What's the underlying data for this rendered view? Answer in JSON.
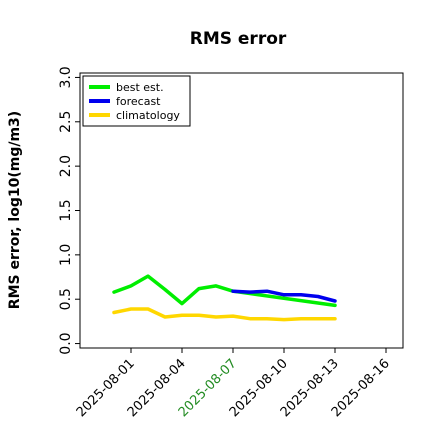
{
  "chart_data": {
    "type": "line",
    "title": "RMS error",
    "ylabel": "RMS error, log10(mg/m3)",
    "xlabel": "",
    "ylim": [
      -0.05,
      3.05
    ],
    "xlim": [
      "2025-07-29",
      "2025-08-17"
    ],
    "yticks": [
      0.0,
      0.5,
      1.0,
      1.5,
      2.0,
      2.5,
      3.0
    ],
    "ytick_labels": [
      "0.0",
      "0.5",
      "1.0",
      "1.5",
      "2.0",
      "2.5",
      "3.0"
    ],
    "xticks": [
      "2025-08-01",
      "2025-08-04",
      "2025-08-07",
      "2025-08-10",
      "2025-08-13",
      "2025-08-16"
    ],
    "highlighted_xtick": "2025-08-07",
    "highlight_color": "#228b22",
    "grid": false,
    "legend_position": "top-left",
    "series": [
      {
        "name": "best est.",
        "color": "#00ee00",
        "x": [
          "2025-07-31",
          "2025-08-01",
          "2025-08-02",
          "2025-08-03",
          "2025-08-04",
          "2025-08-05",
          "2025-08-06",
          "2025-08-07",
          "2025-08-13"
        ],
        "y": [
          0.58,
          0.65,
          0.76,
          0.61,
          0.45,
          0.62,
          0.65,
          0.59,
          0.43
        ]
      },
      {
        "name": "forecast",
        "color": "#0000ee",
        "x": [
          "2025-08-07",
          "2025-08-08",
          "2025-08-09",
          "2025-08-10",
          "2025-08-11",
          "2025-08-12",
          "2025-08-13"
        ],
        "y": [
          0.59,
          0.58,
          0.59,
          0.55,
          0.55,
          0.53,
          0.48
        ]
      },
      {
        "name": "climatology",
        "color": "#ffd700",
        "x": [
          "2025-07-31",
          "2025-08-01",
          "2025-08-02",
          "2025-08-03",
          "2025-08-04",
          "2025-08-05",
          "2025-08-06",
          "2025-08-07",
          "2025-08-08",
          "2025-08-09",
          "2025-08-10",
          "2025-08-11",
          "2025-08-12",
          "2025-08-13"
        ],
        "y": [
          0.35,
          0.39,
          0.39,
          0.3,
          0.32,
          0.32,
          0.3,
          0.31,
          0.28,
          0.28,
          0.27,
          0.28,
          0.28,
          0.28
        ]
      }
    ]
  }
}
